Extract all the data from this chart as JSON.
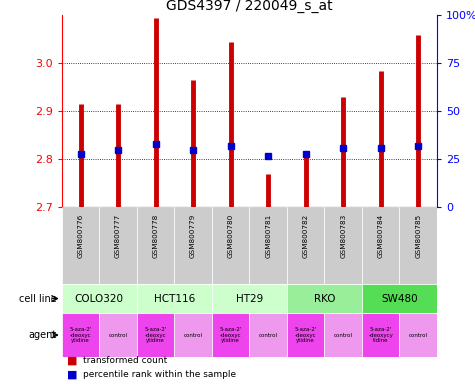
{
  "title": "GDS4397 / 220049_s_at",
  "samples": [
    "GSM800776",
    "GSM800777",
    "GSM800778",
    "GSM800779",
    "GSM800780",
    "GSM800781",
    "GSM800782",
    "GSM800783",
    "GSM800784",
    "GSM800785"
  ],
  "transformed_counts": [
    2.915,
    2.915,
    3.095,
    2.965,
    3.045,
    2.77,
    2.815,
    2.93,
    2.985,
    3.06
  ],
  "percentile_ranks": [
    28,
    30,
    33,
    30,
    32,
    27,
    28,
    31,
    31,
    32
  ],
  "ylim": [
    2.7,
    3.1
  ],
  "yticks": [
    2.7,
    2.8,
    2.9,
    3.0
  ],
  "y2lim": [
    0,
    100
  ],
  "y2ticks": [
    0,
    25,
    50,
    75,
    100
  ],
  "y2ticklabels": [
    "0",
    "25",
    "50",
    "75",
    "100%"
  ],
  "cell_lines": [
    {
      "name": "COLO320",
      "start": 0,
      "end": 2,
      "color": "#ccffcc"
    },
    {
      "name": "HCT116",
      "start": 2,
      "end": 4,
      "color": "#ccffcc"
    },
    {
      "name": "HT29",
      "start": 4,
      "end": 6,
      "color": "#ccffcc"
    },
    {
      "name": "RKO",
      "start": 6,
      "end": 8,
      "color": "#99ee99"
    },
    {
      "name": "SW480",
      "start": 8,
      "end": 10,
      "color": "#55dd55"
    }
  ],
  "agents": [
    {
      "name": "5-aza-2'\n-deoxyc\nytidine",
      "type": "drug",
      "col": 0
    },
    {
      "name": "control",
      "type": "control",
      "col": 1
    },
    {
      "name": "5-aza-2'\n-deoxyc\nytidine",
      "type": "drug",
      "col": 2
    },
    {
      "name": "control",
      "type": "control",
      "col": 3
    },
    {
      "name": "5-aza-2'\n-deoxyc\nytidine",
      "type": "drug",
      "col": 4
    },
    {
      "name": "control",
      "type": "control",
      "col": 5
    },
    {
      "name": "5-aza-2'\n-deoxyc\nytidine",
      "type": "drug",
      "col": 6
    },
    {
      "name": "control",
      "type": "control",
      "col": 7
    },
    {
      "name": "5-aza-2'\n-deoxycy\ntidine",
      "type": "drug",
      "col": 8
    },
    {
      "name": "control",
      "type": "control",
      "col": 9
    }
  ],
  "bar_color": "#cc0000",
  "dot_color": "#0000cc",
  "sample_bg_color": "#cccccc",
  "drug_bg_color": "#ee44ee",
  "control_bg_color": "#ee99ee",
  "legend_red": "#cc0000",
  "legend_blue": "#0000cc"
}
